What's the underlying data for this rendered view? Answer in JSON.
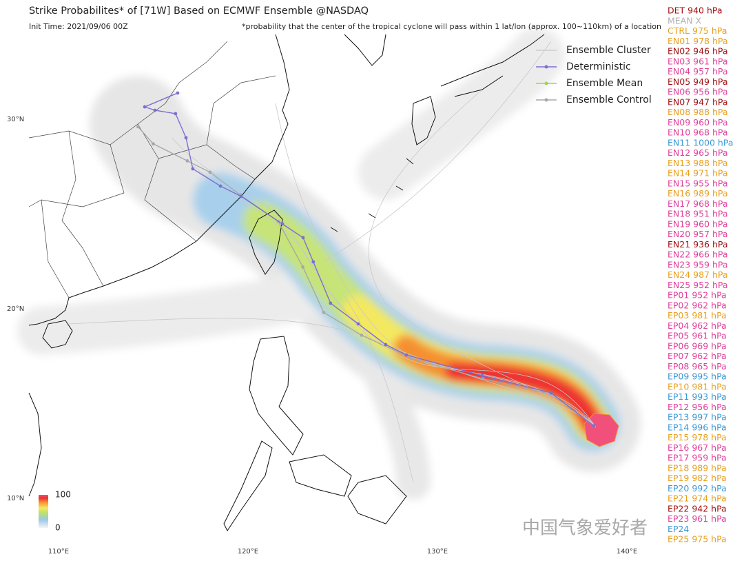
{
  "title": "Strike Probabilites* of [71W] Based on ECMWF Ensemble  @NASDAQ",
  "init_time": "Init Time: 2021/09/06 00Z",
  "footnote": "*probability that the center of the tropical cyclone will pass within 1 lat/lon (approx. 100~110km) of a location",
  "map": {
    "lonlim": [
      108.44,
      141.82
    ],
    "latlim": [
      34.47,
      7.56
    ],
    "lon_ticks": [
      {
        "value": 110,
        "label": "110°E"
      },
      {
        "value": 120,
        "label": "120°E"
      },
      {
        "value": 130,
        "label": "130°E"
      },
      {
        "value": 140,
        "label": "140°E"
      }
    ],
    "lat_ticks": [
      {
        "value": 30,
        "label": "30°N"
      },
      {
        "value": 20,
        "label": "20°N"
      },
      {
        "value": 10,
        "label": "10°N"
      }
    ]
  },
  "legend": [
    {
      "label": "Ensemble Cluster",
      "color": "#cccccc",
      "marker": false
    },
    {
      "label": "Deterministic",
      "color": "#7b6fd0",
      "marker": true
    },
    {
      "label": "Ensemble Mean",
      "color": "#9ad84a",
      "marker": true
    },
    {
      "label": "Ensemble Control",
      "color": "#a8a8a8",
      "marker": true
    }
  ],
  "tracks": [
    {
      "color": "#a8a8a8",
      "lon": [
        138.25,
        136.0,
        132.4,
        128.6,
        126.0,
        124.0,
        122.9,
        121.6,
        119.6,
        118.0,
        116.8,
        115.0,
        114.2
      ],
      "lat": [
        13.82,
        15.5,
        16.3,
        17.4,
        18.6,
        19.8,
        22.2,
        24.6,
        26.0,
        27.2,
        27.8,
        28.7,
        29.6
      ]
    },
    {
      "color": "#7b6fd0",
      "lon": [
        138.25,
        136.0,
        132.36,
        128.36,
        127.27,
        125.82,
        124.36,
        123.45,
        122.91,
        121.82,
        119.64,
        118.55,
        117.09,
        116.73,
        116.18,
        115.09,
        114.55,
        116.29
      ],
      "lat": [
        13.82,
        15.56,
        16.47,
        17.56,
        18.11,
        19.2,
        20.29,
        22.47,
        23.75,
        24.47,
        25.93,
        26.47,
        27.38,
        29.02,
        30.29,
        30.47,
        30.65,
        31.38
      ]
    }
  ],
  "colorbar": {
    "ticks": [
      100,
      0
    ]
  },
  "members": [
    {
      "text": "DET 940 hPa",
      "color": "#a01010"
    },
    {
      "text": "MEAN X",
      "color": "#b0b0b0"
    },
    {
      "text": "CTRL 975 hPa",
      "color": "#e8a020"
    },
    {
      "text": "EN01 978 hPa",
      "color": "#e8a020"
    },
    {
      "text": "EN02 946 hPa",
      "color": "#a01010"
    },
    {
      "text": "EN03 961 hPa",
      "color": "#e0409a"
    },
    {
      "text": "EN04 957 hPa",
      "color": "#e0409a"
    },
    {
      "text": "EN05 949 hPa",
      "color": "#a01010"
    },
    {
      "text": "EN06 956 hPa",
      "color": "#e0409a"
    },
    {
      "text": "EN07 947 hPa",
      "color": "#a01010"
    },
    {
      "text": "EN08 988 hPa",
      "color": "#e8a020"
    },
    {
      "text": "EN09 960 hPa",
      "color": "#e0409a"
    },
    {
      "text": "EN10 968 hPa",
      "color": "#e0409a"
    },
    {
      "text": "EN11 1000 hPa",
      "color": "#3a98d8"
    },
    {
      "text": "EN12 965 hPa",
      "color": "#e0409a"
    },
    {
      "text": "EN13 988 hPa",
      "color": "#e8a020"
    },
    {
      "text": "EN14 971 hPa",
      "color": "#e8a020"
    },
    {
      "text": "EN15 955 hPa",
      "color": "#e0409a"
    },
    {
      "text": "EN16 989 hPa",
      "color": "#e8a020"
    },
    {
      "text": "EN17 968 hPa",
      "color": "#e0409a"
    },
    {
      "text": "EN18 951 hPa",
      "color": "#e0409a"
    },
    {
      "text": "EN19 960 hPa",
      "color": "#e0409a"
    },
    {
      "text": "EN20 957 hPa",
      "color": "#e0409a"
    },
    {
      "text": "EN21 936 hPa",
      "color": "#a01010"
    },
    {
      "text": "EN22 966 hPa",
      "color": "#e0409a"
    },
    {
      "text": "EN23 959 hPa",
      "color": "#e0409a"
    },
    {
      "text": "EN24 987 hPa",
      "color": "#e8a020"
    },
    {
      "text": "EN25 952 hPa",
      "color": "#e0409a"
    },
    {
      "text": "EP01 952 hPa",
      "color": "#e0409a"
    },
    {
      "text": "EP02 962 hPa",
      "color": "#e0409a"
    },
    {
      "text": "EP03 981 hPa",
      "color": "#e8a020"
    },
    {
      "text": "EP04 962 hPa",
      "color": "#e0409a"
    },
    {
      "text": "EP05 961 hPa",
      "color": "#e0409a"
    },
    {
      "text": "EP06 969 hPa",
      "color": "#e0409a"
    },
    {
      "text": "EP07 962 hPa",
      "color": "#e0409a"
    },
    {
      "text": "EP08 965 hPa",
      "color": "#e0409a"
    },
    {
      "text": "EP09 995 hPa",
      "color": "#3a98d8"
    },
    {
      "text": "EP10 981 hPa",
      "color": "#e8a020"
    },
    {
      "text": "EP11 993 hPa",
      "color": "#3a98d8"
    },
    {
      "text": "EP12 956 hPa",
      "color": "#e0409a"
    },
    {
      "text": "EP13 997 hPa",
      "color": "#3a98d8"
    },
    {
      "text": "EP14 996 hPa",
      "color": "#3a98d8"
    },
    {
      "text": "EP15 978 hPa",
      "color": "#e8a020"
    },
    {
      "text": "EP16 967 hPa",
      "color": "#e0409a"
    },
    {
      "text": "EP17 959 hPa",
      "color": "#e0409a"
    },
    {
      "text": "EP18 989 hPa",
      "color": "#e8a020"
    },
    {
      "text": "EP19 982 hPa",
      "color": "#e8a020"
    },
    {
      "text": "EP20 992 hPa",
      "color": "#3a98d8"
    },
    {
      "text": "EP21 974 hPa",
      "color": "#e8a020"
    },
    {
      "text": "EP22 942 hPa",
      "color": "#a01010"
    },
    {
      "text": "EP23 961 hPa",
      "color": "#e0409a"
    },
    {
      "text": "EP24",
      "color": "#3a98d8"
    },
    {
      "text": "EP25 975 hPa",
      "color": "#e8a020"
    }
  ],
  "watermark": "中国气象爱好者"
}
